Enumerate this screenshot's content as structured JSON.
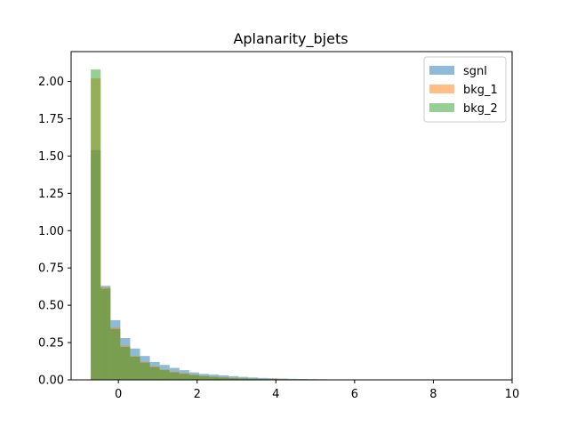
{
  "chart_data": {
    "type": "bar",
    "title": "Aplanarity_bjets",
    "xlabel": "",
    "ylabel": "",
    "xlim": [
      -1.2,
      10.0
    ],
    "ylim": [
      0,
      2.2
    ],
    "x_ticks": [
      0,
      2,
      4,
      6,
      8,
      10
    ],
    "y_ticks": [
      0.0,
      0.25,
      0.5,
      0.75,
      1.0,
      1.25,
      1.5,
      1.75,
      2.0
    ],
    "y_tick_labels": [
      "0.00",
      "0.25",
      "0.50",
      "0.75",
      "1.00",
      "1.25",
      "1.50",
      "1.75",
      "2.00"
    ],
    "legend_position": "top-right",
    "grid": false,
    "bin_start": -0.7,
    "bin_width": 0.25,
    "series": [
      {
        "name": "sgnl",
        "color": "#1f77b4",
        "values": [
          1.54,
          0.63,
          0.4,
          0.28,
          0.21,
          0.16,
          0.12,
          0.1,
          0.08,
          0.065,
          0.05,
          0.04,
          0.035,
          0.03,
          0.025,
          0.02,
          0.016,
          0.013,
          0.011,
          0.009,
          0.007,
          0.006,
          0.005,
          0.004,
          0.003,
          0.003,
          0.002,
          0.002,
          0.001,
          0.001
        ]
      },
      {
        "name": "bkg_1",
        "color": "#ff7f0e",
        "values": [
          2.02,
          0.62,
          0.35,
          0.23,
          0.16,
          0.12,
          0.09,
          0.07,
          0.055,
          0.045,
          0.035,
          0.028,
          0.022,
          0.018,
          0.014,
          0.011,
          0.009,
          0.007,
          0.006,
          0.005,
          0.004,
          0.003,
          0.002,
          0.002,
          0.001,
          0.001,
          0.001,
          0.0,
          0.0,
          0.0
        ]
      },
      {
        "name": "bkg_2",
        "color": "#2ca02c",
        "values": [
          2.08,
          0.61,
          0.34,
          0.22,
          0.155,
          0.115,
          0.085,
          0.065,
          0.05,
          0.04,
          0.032,
          0.025,
          0.02,
          0.016,
          0.012,
          0.01,
          0.008,
          0.006,
          0.005,
          0.004,
          0.003,
          0.002,
          0.002,
          0.001,
          0.001,
          0.001,
          0.0,
          0.0,
          0.0,
          0.0
        ]
      }
    ]
  }
}
